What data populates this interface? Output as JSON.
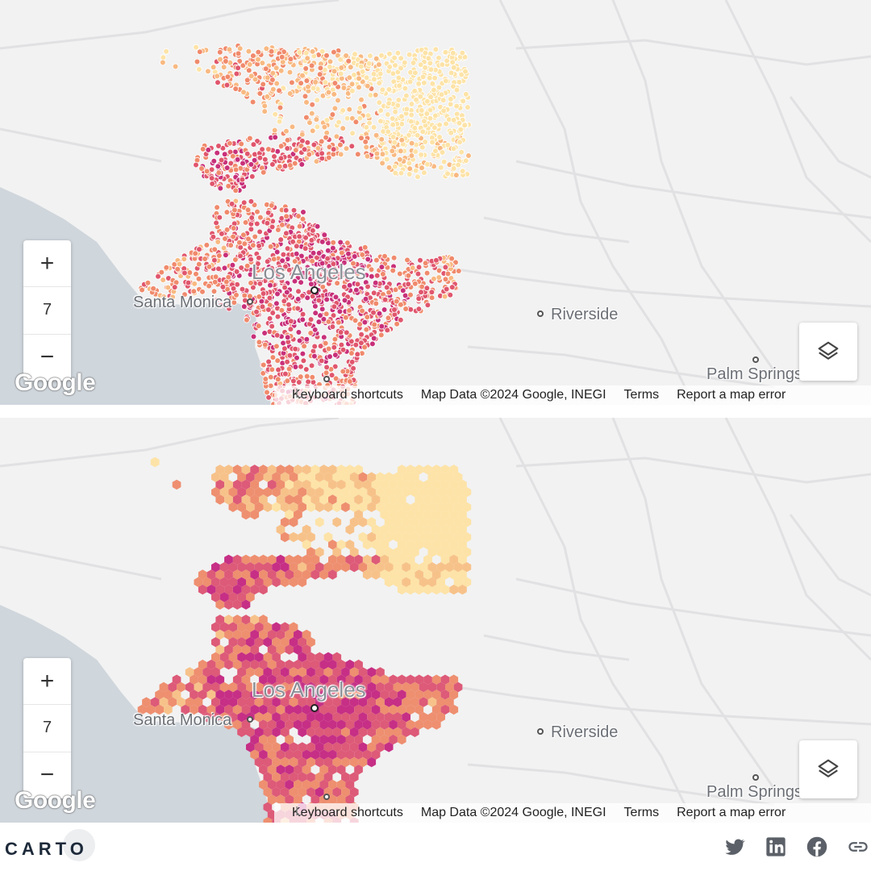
{
  "colors": {
    "map_bg": "#f2f2f2",
    "road": "#e1e1e3",
    "ocean": "#cfd6dc",
    "dot_ramp": [
      "#fde3a7",
      "#f8b982",
      "#f08a6c",
      "#e0566d",
      "#c8307a"
    ],
    "hex_ramp": [
      "#fde3a7",
      "#f7c28a",
      "#ee8f70",
      "#dd5a78",
      "#c62f85"
    ]
  },
  "maps": [
    {
      "style": "points",
      "zoom_in_label": "+",
      "zoom_level": "7",
      "zoom_out_label": "−",
      "layers_icon": "layers-icon",
      "logo": "Google",
      "cities": [
        {
          "name": "Los Angeles",
          "size": "big"
        },
        {
          "name": "Santa Monica",
          "size": "mid"
        },
        {
          "name": "Riverside",
          "size": "mid"
        },
        {
          "name": "Palm Springs",
          "size": "mid"
        }
      ],
      "attribution": {
        "clipped": "L",
        "keyboard": "Keyboard shortcuts",
        "data": "Map Data ©2024 Google, INEGI",
        "terms": "Terms",
        "report": "Report a map error"
      }
    },
    {
      "style": "hexbins",
      "zoom_in_label": "+",
      "zoom_level": "7",
      "zoom_out_label": "−",
      "layers_icon": "layers-icon",
      "logo": "Google",
      "cities": [
        {
          "name": "Los Angeles",
          "size": "big"
        },
        {
          "name": "Santa Monica",
          "size": "mid"
        },
        {
          "name": "Riverside",
          "size": "mid"
        },
        {
          "name": "Palm Springs",
          "size": "mid"
        }
      ],
      "attribution": {
        "clipped": "L",
        "keyboard": "Keyboard shortcuts",
        "data": "Map Data ©2024 Google, INEGI",
        "terms": "Terms",
        "report": "Report a map error"
      }
    }
  ],
  "footer": {
    "brand": "CARTO",
    "social_icons": [
      "twitter-icon",
      "linkedin-icon",
      "facebook-icon",
      "link-icon"
    ]
  }
}
